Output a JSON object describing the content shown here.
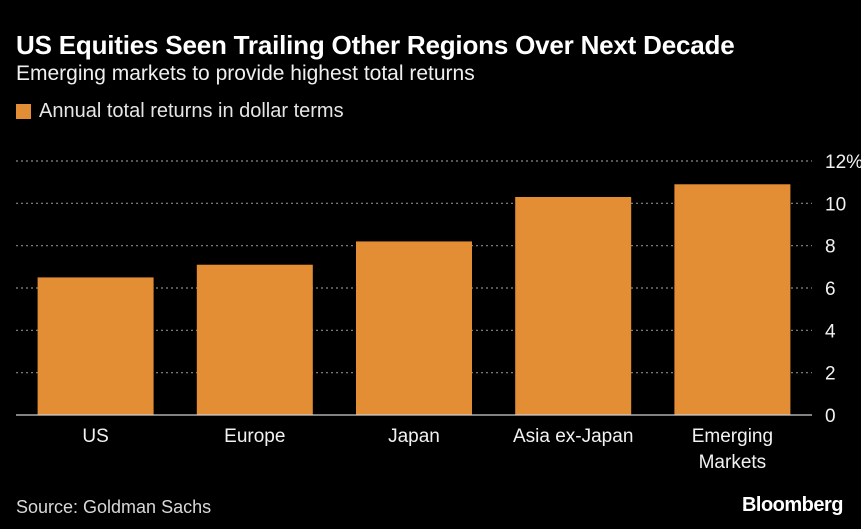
{
  "title": "US Equities Seen Trailing Other Regions Over Next Decade",
  "subtitle": "Emerging markets to provide highest total returns",
  "source": "Source: Goldman Sachs",
  "brand": "Bloomberg",
  "colors": {
    "bar": "#E38E35",
    "background": "#000000",
    "grid": "#8a8a8a",
    "text": "#FFFFFF"
  },
  "chart_data": {
    "type": "bar",
    "title": "US Equities Seen Trailing Other Regions Over Next Decade",
    "subtitle": "Emerging markets to provide highest total returns",
    "legend": [
      "Annual total returns in dollar terms"
    ],
    "categories": [
      [
        "US"
      ],
      [
        "Europe"
      ],
      [
        "Japan"
      ],
      [
        "Asia ex-Japan"
      ],
      [
        "Emerging",
        "Markets"
      ]
    ],
    "series": [
      {
        "name": "Annual total returns in dollar terms",
        "values": [
          6.5,
          7.1,
          8.2,
          10.3,
          10.9
        ]
      }
    ],
    "y_ticks": [
      "0",
      "2",
      "4",
      "6",
      "8",
      "10",
      "12%"
    ],
    "y_tick_values": [
      0,
      2,
      4,
      6,
      8,
      10,
      12
    ],
    "ylim": [
      0,
      12
    ],
    "xlabel": "",
    "ylabel": "",
    "grid": true
  }
}
